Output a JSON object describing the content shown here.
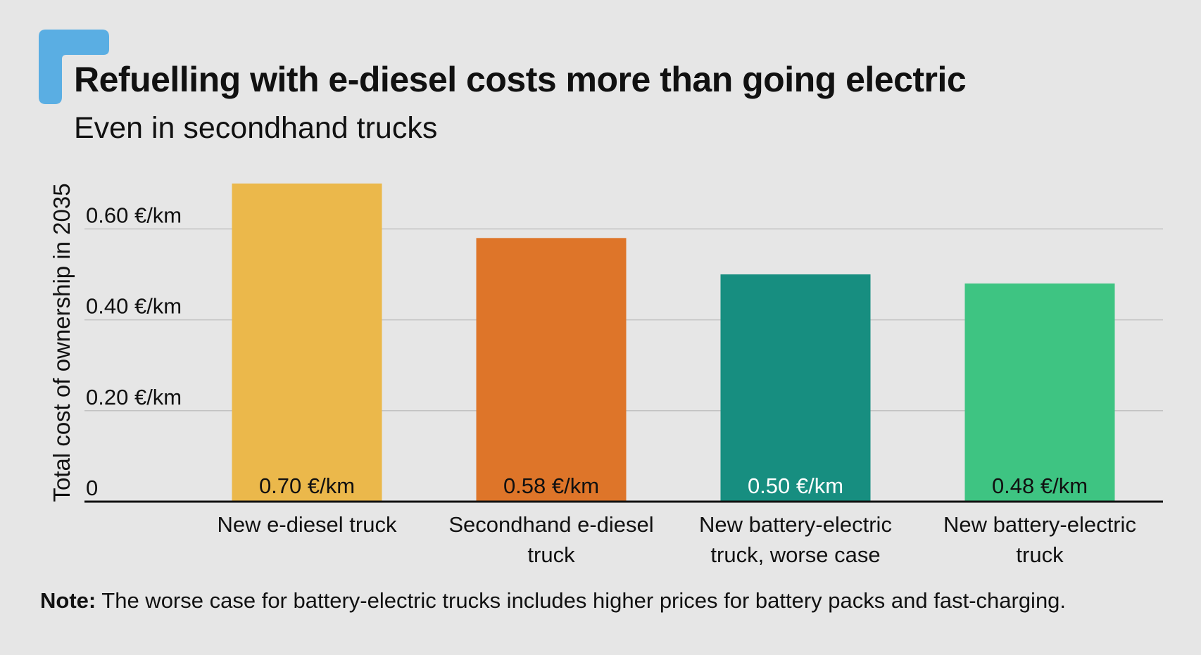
{
  "header": {
    "title": "Refuelling with e-diesel costs more than going electric",
    "subtitle": "Even in secondhand trucks"
  },
  "note": {
    "label": "Note:",
    "text": " The worse case for battery-electric trucks includes higher prices for battery packs and fast-charging."
  },
  "colors": {
    "background": "#e6e6e6",
    "accent_logo": "#5aaee3",
    "gridline": "#c2c2c2",
    "axis": "#111111",
    "text": "#111111"
  },
  "chart_data": {
    "type": "bar",
    "ylabel": "Total cost of ownership in 2035",
    "ylim": [
      0,
      0.75
    ],
    "yticks": [
      {
        "value": 0,
        "label": "0"
      },
      {
        "value": 0.2,
        "label": "0.20 €/km"
      },
      {
        "value": 0.4,
        "label": "0.40 €/km"
      },
      {
        "value": 0.6,
        "label": "0.60 €/km"
      }
    ],
    "grid": true,
    "categories": [
      [
        "New e-diesel truck"
      ],
      [
        "Secondhand e-diesel",
        "truck"
      ],
      [
        "New battery-electric",
        "truck, worse case"
      ],
      [
        "New battery-electric",
        "truck"
      ]
    ],
    "values": [
      0.7,
      0.58,
      0.5,
      0.48
    ],
    "value_labels": [
      "0.70 €/km",
      "0.58 €/km",
      "0.50 €/km",
      "0.48 €/km"
    ],
    "bar_colors": [
      "#ebb84b",
      "#de7529",
      "#178e80",
      "#3ec482"
    ],
    "value_label_colors": [
      "#111111",
      "#111111",
      "#ffffff",
      "#111111"
    ]
  }
}
